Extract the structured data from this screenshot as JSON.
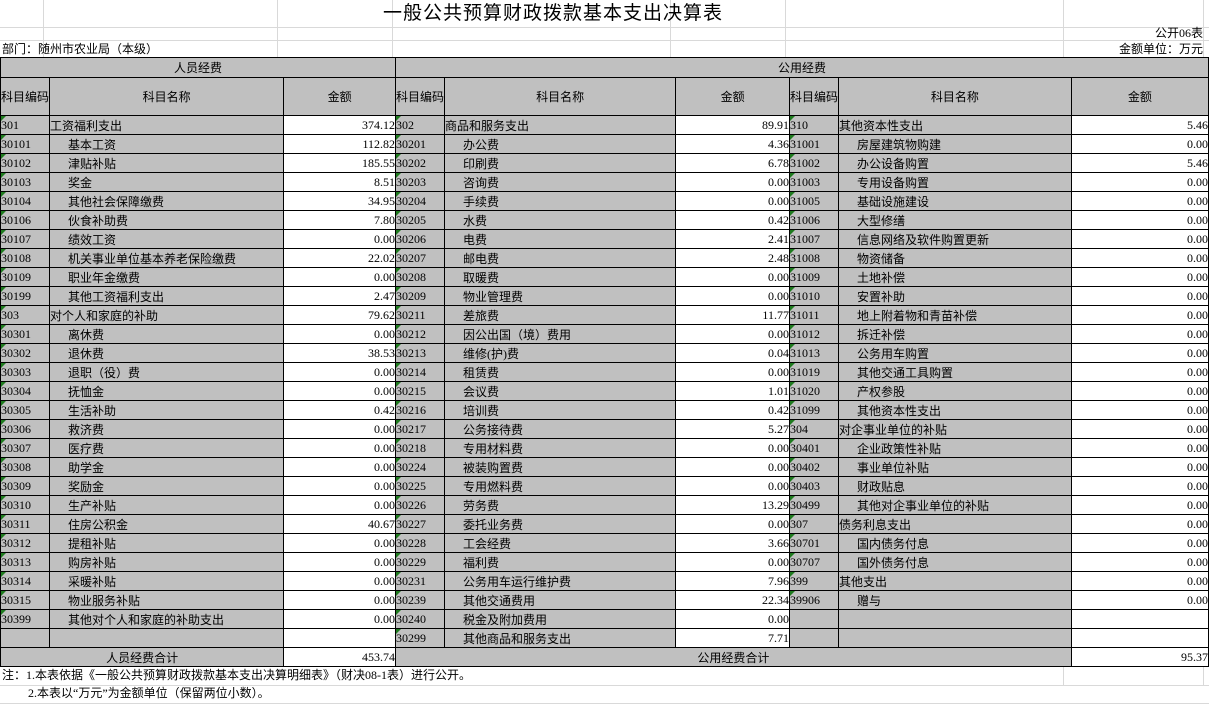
{
  "title": "一般公共预算财政拨款基本支出决算表",
  "meta": {
    "table_code": "公开06表",
    "department": "部门：随州市农业局（本级）",
    "unit": "金额单位：万元"
  },
  "sections": {
    "personnel": "人员经费",
    "public": "公用经费"
  },
  "columns": {
    "code": "科目编码",
    "name": "科目名称",
    "amount": "金额"
  },
  "rows": [
    {
      "p": {
        "code": "301",
        "name": "工资福利支出",
        "amount": "374.12"
      },
      "q": {
        "code": "302",
        "name": "商品和服务支出",
        "amount": "89.91"
      },
      "r": {
        "code": "310",
        "name": "其他资本性支出",
        "amount": "5.46"
      }
    },
    {
      "p": {
        "code": "30101",
        "name": "基本工资",
        "amount": "112.82"
      },
      "q": {
        "code": "30201",
        "name": "办公费",
        "amount": "4.36"
      },
      "r": {
        "code": "31001",
        "name": "房屋建筑物购建",
        "amount": "0.00"
      }
    },
    {
      "p": {
        "code": "30102",
        "name": "津贴补贴",
        "amount": "185.55"
      },
      "q": {
        "code": "30202",
        "name": "印刷费",
        "amount": "6.78"
      },
      "r": {
        "code": "31002",
        "name": "办公设备购置",
        "amount": "5.46"
      }
    },
    {
      "p": {
        "code": "30103",
        "name": "奖金",
        "amount": "8.51"
      },
      "q": {
        "code": "30203",
        "name": "咨询费",
        "amount": "0.00"
      },
      "r": {
        "code": "31003",
        "name": "专用设备购置",
        "amount": "0.00"
      }
    },
    {
      "p": {
        "code": "30104",
        "name": "其他社会保障缴费",
        "amount": "34.95"
      },
      "q": {
        "code": "30204",
        "name": "手续费",
        "amount": "0.00"
      },
      "r": {
        "code": "31005",
        "name": "基础设施建设",
        "amount": "0.00"
      }
    },
    {
      "p": {
        "code": "30106",
        "name": "伙食补助费",
        "amount": "7.80"
      },
      "q": {
        "code": "30205",
        "name": "水费",
        "amount": "0.42"
      },
      "r": {
        "code": "31006",
        "name": "大型修缮",
        "amount": "0.00"
      }
    },
    {
      "p": {
        "code": "30107",
        "name": "绩效工资",
        "amount": "0.00"
      },
      "q": {
        "code": "30206",
        "name": "电费",
        "amount": "2.41"
      },
      "r": {
        "code": "31007",
        "name": "信息网络及软件购置更新",
        "amount": "0.00"
      }
    },
    {
      "p": {
        "code": "30108",
        "name": "机关事业单位基本养老保险缴费",
        "amount": "22.02"
      },
      "q": {
        "code": "30207",
        "name": "邮电费",
        "amount": "2.48"
      },
      "r": {
        "code": "31008",
        "name": "物资储备",
        "amount": "0.00"
      }
    },
    {
      "p": {
        "code": "30109",
        "name": "职业年金缴费",
        "amount": "0.00"
      },
      "q": {
        "code": "30208",
        "name": "取暖费",
        "amount": "0.00"
      },
      "r": {
        "code": "31009",
        "name": "土地补偿",
        "amount": "0.00"
      }
    },
    {
      "p": {
        "code": "30199",
        "name": "其他工资福利支出",
        "amount": "2.47"
      },
      "q": {
        "code": "30209",
        "name": "物业管理费",
        "amount": "0.00"
      },
      "r": {
        "code": "31010",
        "name": "安置补助",
        "amount": "0.00"
      }
    },
    {
      "p": {
        "code": "303",
        "name": "对个人和家庭的补助",
        "amount": "79.62"
      },
      "q": {
        "code": "30211",
        "name": "差旅费",
        "amount": "11.77"
      },
      "r": {
        "code": "31011",
        "name": "地上附着物和青苗补偿",
        "amount": "0.00"
      }
    },
    {
      "p": {
        "code": "30301",
        "name": "离休费",
        "amount": "0.00"
      },
      "q": {
        "code": "30212",
        "name": "因公出国（境）费用",
        "amount": "0.00"
      },
      "r": {
        "code": "31012",
        "name": "拆迁补偿",
        "amount": "0.00"
      }
    },
    {
      "p": {
        "code": "30302",
        "name": "退休费",
        "amount": "38.53"
      },
      "q": {
        "code": "30213",
        "name": "维修(护)费",
        "amount": "0.04"
      },
      "r": {
        "code": "31013",
        "name": "公务用车购置",
        "amount": "0.00"
      }
    },
    {
      "p": {
        "code": "30303",
        "name": "退职（役）费",
        "amount": "0.00"
      },
      "q": {
        "code": "30214",
        "name": "租赁费",
        "amount": "0.00"
      },
      "r": {
        "code": "31019",
        "name": "其他交通工具购置",
        "amount": "0.00"
      }
    },
    {
      "p": {
        "code": "30304",
        "name": "抚恤金",
        "amount": "0.00"
      },
      "q": {
        "code": "30215",
        "name": "会议费",
        "amount": "1.01"
      },
      "r": {
        "code": "31020",
        "name": "产权参股",
        "amount": "0.00"
      }
    },
    {
      "p": {
        "code": "30305",
        "name": "生活补助",
        "amount": "0.42"
      },
      "q": {
        "code": "30216",
        "name": "培训费",
        "amount": "0.42"
      },
      "r": {
        "code": "31099",
        "name": "其他资本性支出",
        "amount": "0.00"
      }
    },
    {
      "p": {
        "code": "30306",
        "name": "救济费",
        "amount": "0.00"
      },
      "q": {
        "code": "30217",
        "name": "公务接待费",
        "amount": "5.27"
      },
      "r": {
        "code": "304",
        "name": "对企事业单位的补贴",
        "amount": "0.00"
      }
    },
    {
      "p": {
        "code": "30307",
        "name": "医疗费",
        "amount": "0.00"
      },
      "q": {
        "code": "30218",
        "name": "专用材料费",
        "amount": "0.00"
      },
      "r": {
        "code": "30401",
        "name": "企业政策性补贴",
        "amount": "0.00"
      }
    },
    {
      "p": {
        "code": "30308",
        "name": "助学金",
        "amount": "0.00"
      },
      "q": {
        "code": "30224",
        "name": "被装购置费",
        "amount": "0.00"
      },
      "r": {
        "code": "30402",
        "name": "事业单位补贴",
        "amount": "0.00"
      }
    },
    {
      "p": {
        "code": "30309",
        "name": "奖励金",
        "amount": "0.00"
      },
      "q": {
        "code": "30225",
        "name": "专用燃料费",
        "amount": "0.00"
      },
      "r": {
        "code": "30403",
        "name": "财政贴息",
        "amount": "0.00"
      }
    },
    {
      "p": {
        "code": "30310",
        "name": "生产补贴",
        "amount": "0.00"
      },
      "q": {
        "code": "30226",
        "name": "劳务费",
        "amount": "13.29"
      },
      "r": {
        "code": "30499",
        "name": "其他对企事业单位的补贴",
        "amount": "0.00"
      }
    },
    {
      "p": {
        "code": "30311",
        "name": "住房公积金",
        "amount": "40.67"
      },
      "q": {
        "code": "30227",
        "name": "委托业务费",
        "amount": "0.00"
      },
      "r": {
        "code": "307",
        "name": "债务利息支出",
        "amount": "0.00"
      }
    },
    {
      "p": {
        "code": "30312",
        "name": "提租补贴",
        "amount": "0.00"
      },
      "q": {
        "code": "30228",
        "name": "工会经费",
        "amount": "3.66"
      },
      "r": {
        "code": "30701",
        "name": "国内债务付息",
        "amount": "0.00"
      }
    },
    {
      "p": {
        "code": "30313",
        "name": "购房补贴",
        "amount": "0.00"
      },
      "q": {
        "code": "30229",
        "name": "福利费",
        "amount": "0.00"
      },
      "r": {
        "code": "30707",
        "name": "国外债务付息",
        "amount": "0.00"
      }
    },
    {
      "p": {
        "code": "30314",
        "name": "采暖补贴",
        "amount": "0.00"
      },
      "q": {
        "code": "30231",
        "name": "公务用车运行维护费",
        "amount": "7.96"
      },
      "r": {
        "code": "399",
        "name": "其他支出",
        "amount": "0.00"
      }
    },
    {
      "p": {
        "code": "30315",
        "name": "物业服务补贴",
        "amount": "0.00"
      },
      "q": {
        "code": "30239",
        "name": "其他交通费用",
        "amount": "22.34"
      },
      "r": {
        "code": "39906",
        "name": "赠与",
        "amount": "0.00"
      }
    },
    {
      "p": {
        "code": "30399",
        "name": "其他对个人和家庭的补助支出",
        "amount": "0.00"
      },
      "q": {
        "code": "30240",
        "name": "税金及附加费用",
        "amount": "0.00"
      },
      "r": {
        "code": "",
        "name": "",
        "amount": ""
      }
    },
    {
      "p": {
        "code": "",
        "name": "",
        "amount": ""
      },
      "q": {
        "code": "30299",
        "name": "其他商品和服务支出",
        "amount": "7.71"
      },
      "r": {
        "code": "",
        "name": "",
        "amount": ""
      }
    }
  ],
  "totals": {
    "personnel_label": "人员经费合计",
    "personnel_amount": "453.74",
    "public_label": "公用经费合计",
    "public_amount": "95.37"
  },
  "notes": [
    "注：1.本表依据《一般公共预算财政拨款基本支出决算明细表》（财决08-1表）进行公开。",
    "2.本表以“万元”为金额单位（保留两位小数）。"
  ],
  "colors": {
    "cell_grey": "#c0c0c0",
    "triangle_green": "#1e7b1e",
    "border_black": "#000000",
    "gridline_grey": "#d9d9d9"
  }
}
